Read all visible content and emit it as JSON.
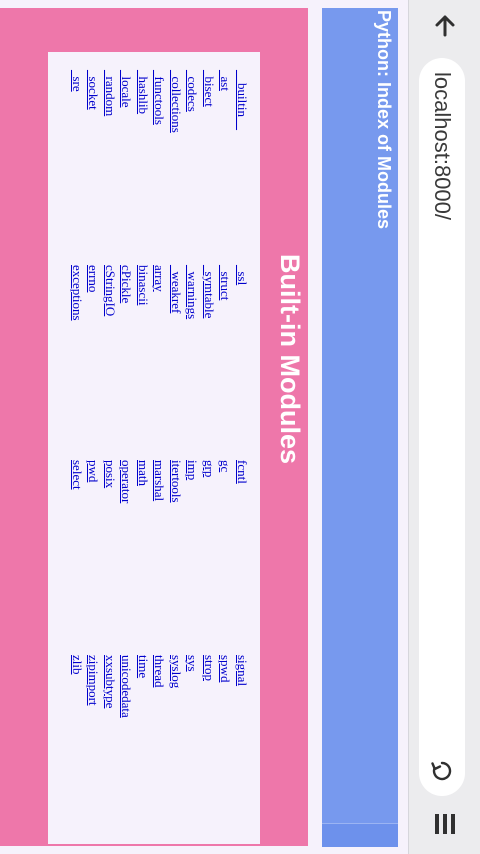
{
  "browser": {
    "url": "localhost:8000/",
    "icons": {
      "back": "arrow-back-icon",
      "reload": "reload-icon",
      "menu": "menu-icon"
    }
  },
  "page": {
    "title": "Python: Index of Modules",
    "section_title": "Built-in Modules",
    "colors": {
      "header": "#7799ee",
      "section": "#ee77aa",
      "link": "#0000cc",
      "background": "#f6f2fc"
    },
    "module_columns": [
      [
        "__builtin__",
        "_ast",
        "_bisect",
        "_codecs",
        "_collections",
        "_functools",
        "_hashlib",
        "_locale",
        "_random",
        "_socket",
        "_sre"
      ],
      [
        "_ssl",
        "_struct",
        "_symtable",
        "_warnings",
        "_weakref",
        "array",
        "binascii",
        "cPickle",
        "cStringIO",
        "errno",
        "exceptions"
      ],
      [
        "fcntl",
        "gc",
        "grp",
        "imp",
        "itertools",
        "marshal",
        "math",
        "operator",
        "posix",
        "pwd",
        "select"
      ],
      [
        "signal",
        "spwd",
        "strop",
        "sys",
        "syslog",
        "thread",
        "time",
        "unicodedata",
        "xxsubtype",
        "zipimport",
        "zlib"
      ]
    ]
  }
}
